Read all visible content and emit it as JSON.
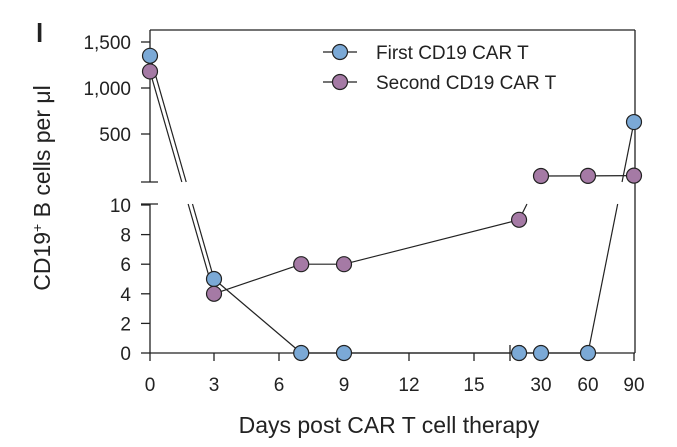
{
  "panel_label": "l",
  "chart_data": {
    "type": "line",
    "xlabel": "Days post CAR T cell therapy",
    "ylabel_main": "CD19",
    "ylabel_sup": "+",
    "ylabel_rest": " B cells per μl",
    "x_ticks": [
      "0",
      "3",
      "6",
      "9",
      "12",
      "15",
      "30",
      "60",
      "90"
    ],
    "y_ticks_upper": [
      "1,500",
      "1,000",
      "500"
    ],
    "y_ticks_lower": [
      "10",
      "8",
      "6",
      "4",
      "2",
      "0"
    ],
    "y_lower_range": [
      0,
      10
    ],
    "y_upper_range": [
      500,
      1500
    ],
    "axis_breaks": [
      "y",
      "x"
    ],
    "legend_position": "top-right",
    "series": [
      {
        "name": "First CD19 CAR T",
        "color": "#7ba9d6",
        "points": [
          {
            "x": 0,
            "y": 1350
          },
          {
            "x": 3,
            "y": 5
          },
          {
            "x": 7,
            "y": 0
          },
          {
            "x": 9,
            "y": 0
          },
          {
            "x": 16,
            "y": 0
          },
          {
            "x": 30,
            "y": 0
          },
          {
            "x": 60,
            "y": 0
          },
          {
            "x": 90,
            "y": 630
          }
        ]
      },
      {
        "name": "Second CD19 CAR T",
        "color": "#a57aa5",
        "points": [
          {
            "x": 0,
            "y": 1180
          },
          {
            "x": 3,
            "y": 4
          },
          {
            "x": 7,
            "y": 6
          },
          {
            "x": 9,
            "y": 6
          },
          {
            "x": 16,
            "y": 9
          },
          {
            "x": 30,
            "y": 150
          },
          {
            "x": 60,
            "y": 155
          },
          {
            "x": 90,
            "y": 170
          }
        ]
      }
    ]
  }
}
